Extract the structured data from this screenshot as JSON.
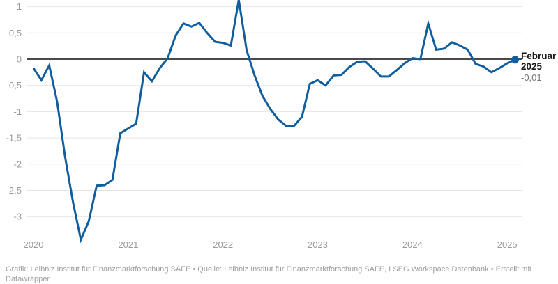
{
  "chart_data": {
    "type": "line",
    "title": "",
    "x": [
      "2020-01",
      "2020-02",
      "2020-03",
      "2020-04",
      "2020-05",
      "2020-06",
      "2020-07",
      "2020-08",
      "2020-09",
      "2020-10",
      "2020-11",
      "2020-12",
      "2021-01",
      "2021-02",
      "2021-03",
      "2021-04",
      "2021-05",
      "2021-06",
      "2021-07",
      "2021-08",
      "2021-09",
      "2021-10",
      "2021-11",
      "2021-12",
      "2022-01",
      "2022-02",
      "2022-03",
      "2022-04",
      "2022-05",
      "2022-06",
      "2022-07",
      "2022-08",
      "2022-09",
      "2022-10",
      "2022-11",
      "2022-12",
      "2023-01",
      "2023-02",
      "2023-03",
      "2023-04",
      "2023-05",
      "2023-06",
      "2023-07",
      "2023-08",
      "2023-09",
      "2023-10",
      "2023-11",
      "2023-12",
      "2024-01",
      "2024-02",
      "2024-03",
      "2024-04",
      "2024-05",
      "2024-06",
      "2024-07",
      "2024-08",
      "2024-09",
      "2024-10",
      "2024-11",
      "2024-12",
      "2025-01",
      "2025-02"
    ],
    "values": [
      -0.17,
      -0.4,
      -0.12,
      -0.82,
      -1.86,
      -2.72,
      -3.44,
      -3.09,
      -2.41,
      -2.4,
      -2.3,
      -1.41,
      -1.32,
      -1.23,
      -0.25,
      -0.42,
      -0.17,
      0.02,
      0.45,
      0.68,
      0.62,
      0.69,
      0.5,
      0.33,
      0.31,
      0.26,
      1.13,
      0.17,
      -0.31,
      -0.7,
      -0.95,
      -1.15,
      -1.27,
      -1.27,
      -1.1,
      -0.47,
      -0.4,
      -0.5,
      -0.31,
      -0.3,
      -0.15,
      -0.05,
      -0.04,
      -0.18,
      -0.33,
      -0.33,
      -0.21,
      -0.08,
      0.02,
      0.0,
      0.68,
      0.18,
      0.2,
      0.32,
      0.26,
      0.18,
      -0.09,
      -0.14,
      -0.25,
      -0.17,
      -0.08,
      -0.01
    ],
    "y_ticks": [
      {
        "value": 1,
        "label": "1"
      },
      {
        "value": 0.5,
        "label": "0,5"
      },
      {
        "value": 0,
        "label": "0"
      },
      {
        "value": -0.5,
        "label": "-0,5"
      },
      {
        "value": -1,
        "label": "-1"
      },
      {
        "value": -1.5,
        "label": "-1,5"
      },
      {
        "value": -2,
        "label": "-2"
      },
      {
        "value": -2.5,
        "label": "-2,5"
      },
      {
        "value": -3,
        "label": "-3"
      }
    ],
    "x_ticks": [
      "2020",
      "2021",
      "2022",
      "2023",
      "2024",
      "2025"
    ],
    "ylim": [
      -3.6,
      1.15
    ],
    "grid": true,
    "legend": "none",
    "end_label": {
      "line1": "Februar",
      "line2": "2025",
      "value": "-0,01"
    },
    "colors": {
      "line": "#115e9f",
      "end_dot": "#115e9f",
      "zero_line": "#4a4a4a",
      "grid": "#e4e4e4",
      "tick_text": "#9a9a9a",
      "label_text": "#1a1a1a",
      "value_text": "#757575",
      "footer_text": "#9e9e9e"
    }
  },
  "footer": {
    "line1": "Grafik: Leibniz Institut für Finanzmarktforschung SAFE • Quelle: Leibniz Institut für Finanzmarktforschung SAFE, LSEG Workspace Datenbank • Erstellt mit",
    "line2": "Datawrapper"
  }
}
